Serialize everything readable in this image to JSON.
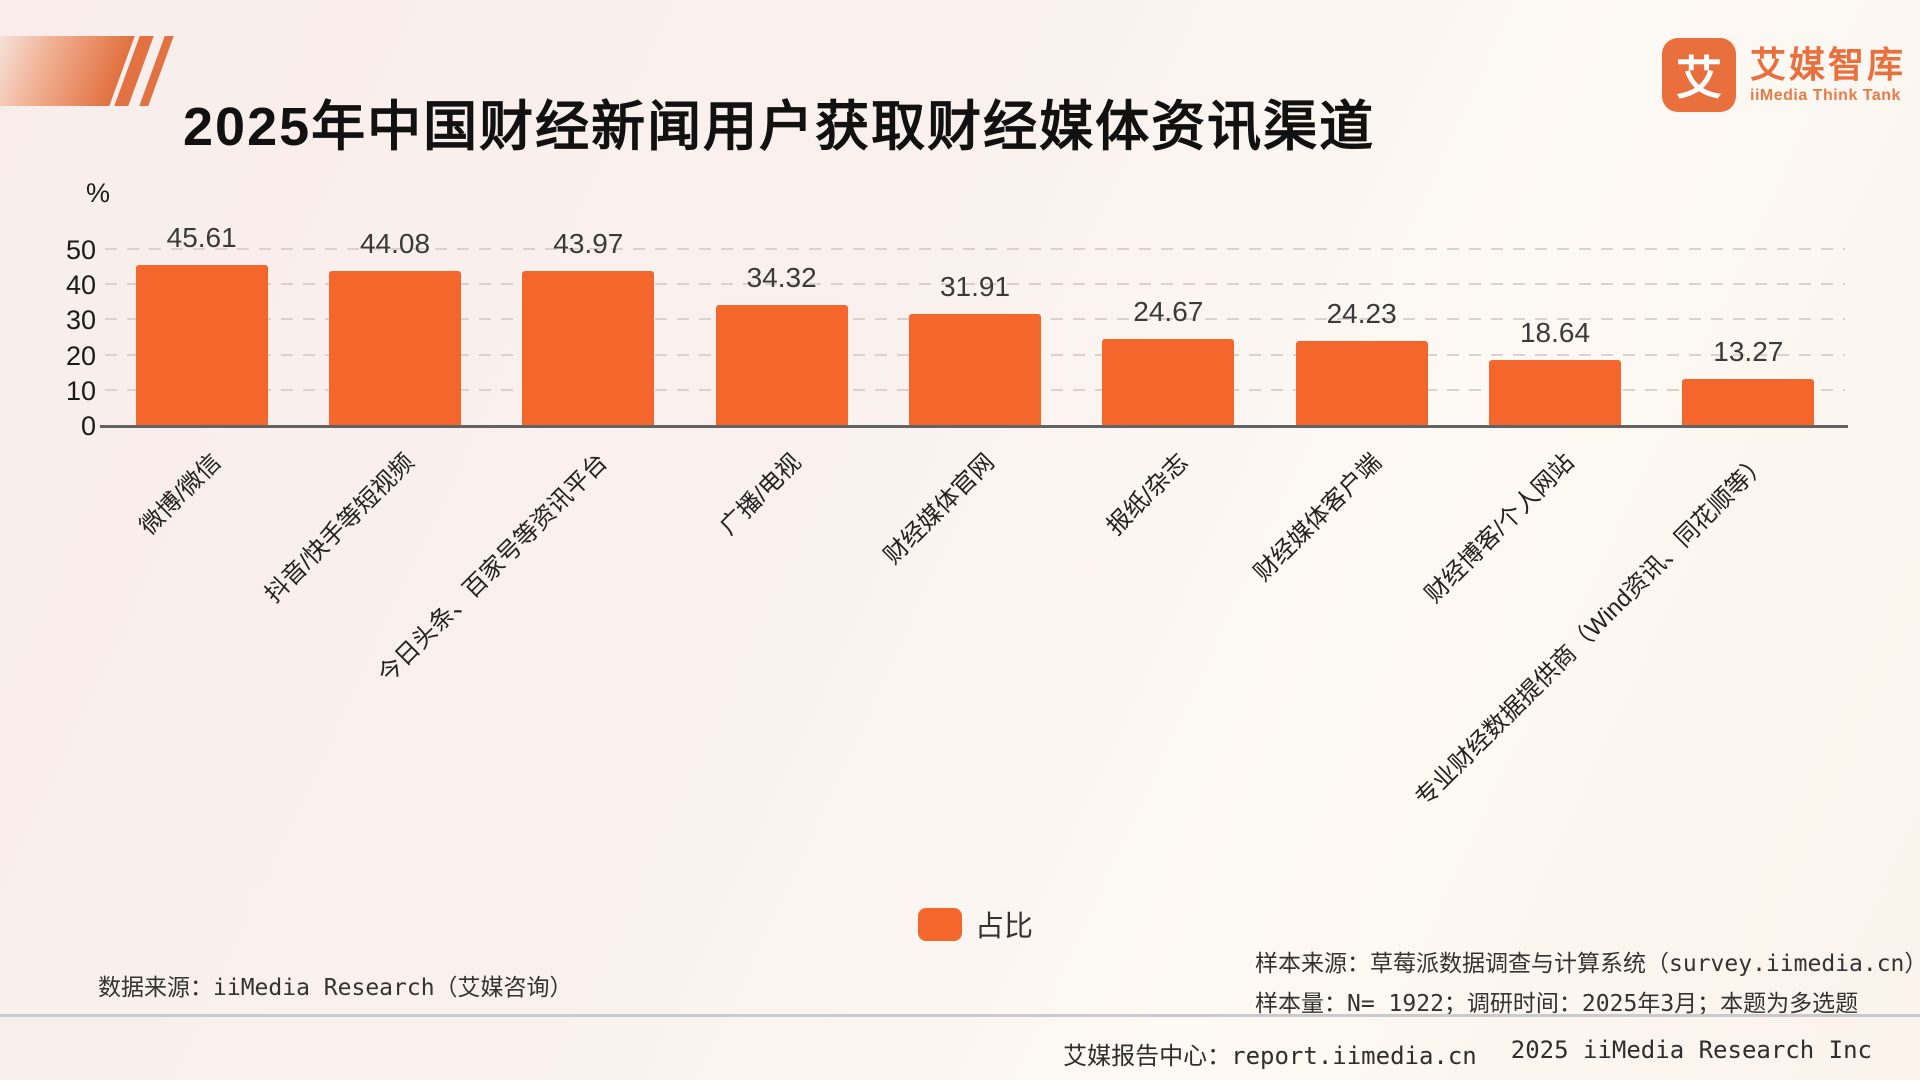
{
  "header": {
    "title": "2025年中国财经新闻用户获取财经媒体资讯渠道",
    "logo": {
      "symbol": "艾",
      "name": "艾媒智库",
      "tagline": "iiMedia Think Tank"
    }
  },
  "chart_data": {
    "type": "bar",
    "title": "2025年中国财经新闻用户获取财经媒体资讯渠道",
    "unit_label": "%",
    "categories": [
      "微博/微信",
      "抖音/快手等短视频",
      "今日头条、百家号等资讯平台",
      "广播/电视",
      "财经媒体官网",
      "报纸/杂志",
      "财经媒体客户端",
      "财经博客/个人网站",
      "专业财经数据提供商（Wind资讯、同花顺等）"
    ],
    "values": [
      45.61,
      44.08,
      43.97,
      34.32,
      31.91,
      24.67,
      24.23,
      18.64,
      13.27
    ],
    "series_name": "占比",
    "ylim": [
      0,
      50
    ],
    "yticks": [
      0,
      10,
      20,
      30,
      40,
      50
    ],
    "grid": "horizontal-dashed",
    "bar_color": "#f4662b",
    "legend_position": "bottom-center"
  },
  "legend": {
    "label": "占比",
    "color": "#f4662b"
  },
  "footnotes": {
    "data_source": "数据来源：iiMedia Research（艾媒咨询）",
    "sample_source": "样本来源：草莓派数据调查与计算系统（survey.iimedia.cn）",
    "sample_info": "样本量：N= 1922；调研时间：2025年3月；本题为多选题"
  },
  "footer": {
    "center_label": "艾媒报告中心：report.iimedia.cn",
    "copyright": "2025 iiMedia Research Inc"
  },
  "colors": {
    "accent": "#f4662b",
    "logo_orange": "#e96f3c"
  }
}
